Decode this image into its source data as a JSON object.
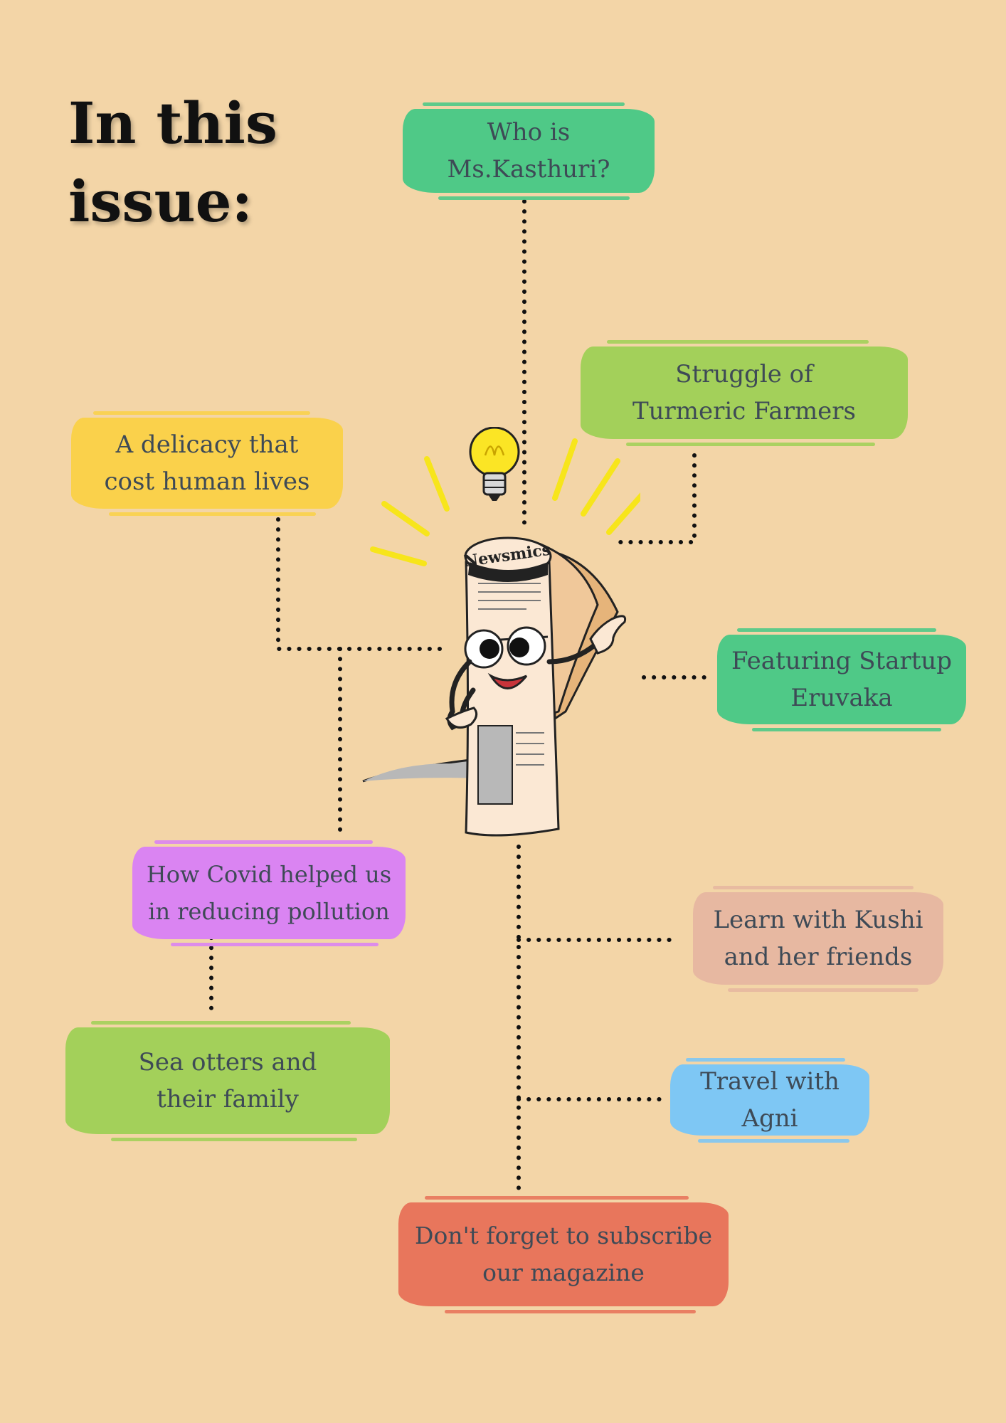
{
  "title": {
    "line1": "In this",
    "line2": "issue:"
  },
  "mascot": {
    "masthead": "Newsmics"
  },
  "topics": [
    {
      "id": "kasthuri",
      "text": "Who is\nMs.Kasthuri?",
      "color": "#4fc987"
    },
    {
      "id": "turmeric",
      "text": "Struggle of\nTurmeric Farmers",
      "color": "#a3d05a"
    },
    {
      "id": "delicacy",
      "text": "A delicacy that\ncost human lives",
      "color": "#fad14b"
    },
    {
      "id": "startup",
      "text": "Featuring Startup\nEruvaka",
      "color": "#4fc987"
    },
    {
      "id": "covid",
      "text": "How Covid helped us\nin reducing pollution",
      "color": "#da84f2"
    },
    {
      "id": "kushi",
      "text": "Learn with Kushi\nand her friends",
      "color": "#e7b8a1"
    },
    {
      "id": "otters",
      "text": "Sea otters and\ntheir family",
      "color": "#a3d05a"
    },
    {
      "id": "agni",
      "text": "Travel with\nAgni",
      "color": "#7ec7f4"
    },
    {
      "id": "subscribe",
      "text": "Don't forget to subscribe\nour magazine",
      "color": "#e8765c"
    }
  ]
}
